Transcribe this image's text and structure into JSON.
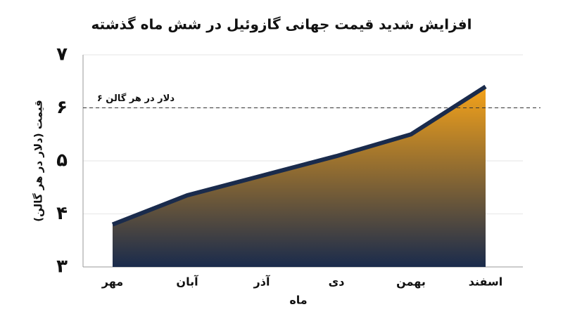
{
  "chart_data": {
    "type": "area",
    "title": "افزایش شدید قیمت جهانی گازوئیل در شش ماه گذشته",
    "x_label": "ماه",
    "y_label": "قیمت (دلار در هر گالن)",
    "categories": [
      "مهر",
      "آبان",
      "آذر",
      "دی",
      "بهمن",
      "اسفند"
    ],
    "values": [
      3.8,
      4.35,
      4.72,
      5.09,
      5.5,
      6.4
    ],
    "color": "#1a2b4c",
    "fill_top": "#f5a31a",
    "ylim": [
      3,
      7
    ],
    "yticks": [
      {
        "value": 3,
        "label": "۳"
      },
      {
        "value": 4,
        "label": "۴"
      },
      {
        "value": 5,
        "label": "۵"
      },
      {
        "value": 6,
        "label": "۶"
      },
      {
        "value": 7,
        "label": "۷"
      }
    ],
    "grid": true,
    "reference_line": {
      "value": 6,
      "label": "۶ دلار در هر گالن"
    }
  }
}
